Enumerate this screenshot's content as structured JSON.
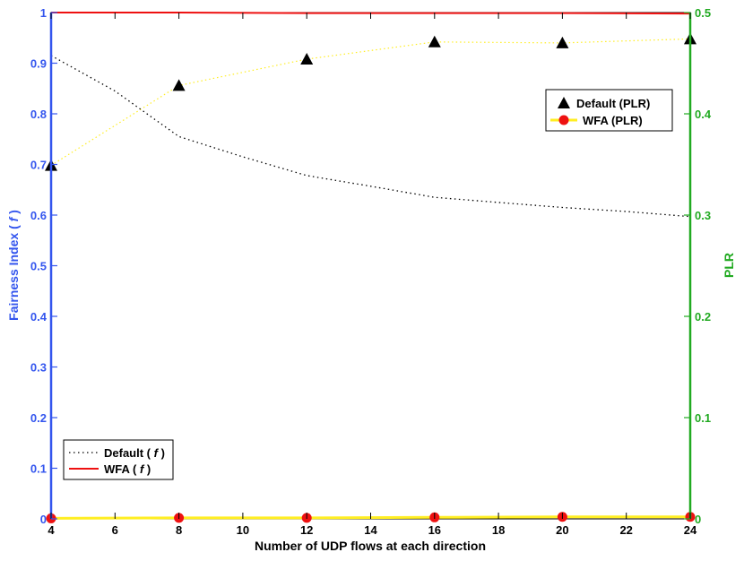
{
  "chart_data": {
    "type": "line",
    "xlabel": "Number of UDP flows at each direction",
    "ylabel_left": "Fairness Index ( f )",
    "ylabel_left_parts": [
      "Fairness Index ( ",
      "f",
      " )"
    ],
    "ylabel_right": "PLR",
    "x_ticks": [
      4,
      6,
      8,
      10,
      12,
      14,
      16,
      18,
      20,
      22,
      24
    ],
    "y_left_ticks": [
      0,
      0.1,
      0.2,
      0.3,
      0.4,
      0.5,
      0.6,
      0.7,
      0.8,
      0.9,
      1
    ],
    "y_right_ticks": [
      0,
      0.1,
      0.2,
      0.3,
      0.4,
      0.5
    ],
    "xlim": [
      4,
      24
    ],
    "ylim_left": [
      0,
      1
    ],
    "ylim_right": [
      0,
      0.5
    ],
    "colors": {
      "left_axis": "#3355ee",
      "right_axis": "#22aa22",
      "default_f": "#000000",
      "wfa_f": "#ee1111",
      "plr_line": "#ffee22",
      "default_plr_marker": "#000000",
      "wfa_plr_marker": "#ee1111"
    },
    "series": [
      {
        "name": "Default ( f )",
        "name_parts": [
          "Default ( ",
          "f",
          " )"
        ],
        "axis": "left",
        "style": "dotted",
        "x": [
          4,
          6,
          8,
          10,
          12,
          14,
          16,
          18,
          20,
          22,
          24
        ],
        "values": [
          0.915,
          0.845,
          0.755,
          0.715,
          0.678,
          0.657,
          0.635,
          0.625,
          0.615,
          0.607,
          0.597
        ]
      },
      {
        "name": "WFA ( f )",
        "name_parts": [
          "WFA ( ",
          "f",
          " )"
        ],
        "axis": "left",
        "style": "solid",
        "x": [
          4,
          8,
          12,
          16,
          20,
          24
        ],
        "values": [
          1.0,
          1.0,
          0.999,
          0.999,
          0.999,
          0.998
        ]
      },
      {
        "name": "Default (PLR)",
        "axis": "right",
        "style": "dotted-with-triangles",
        "x": [
          4,
          8,
          12,
          16,
          20,
          24
        ],
        "values": [
          0.349,
          0.428,
          0.454,
          0.471,
          0.47,
          0.474
        ]
      },
      {
        "name": "WFA (PLR)",
        "axis": "right",
        "style": "solid-with-circles",
        "x": [
          4,
          8,
          12,
          16,
          20,
          24
        ],
        "values": [
          0.0005,
          0.001,
          0.001,
          0.0015,
          0.002,
          0.002
        ]
      }
    ],
    "legend_left": {
      "placement": "bottom-left",
      "entries": [
        "Default ( f )",
        "WFA ( f )"
      ]
    },
    "legend_right": {
      "placement": "top-right",
      "entries": [
        "Default (PLR)",
        "WFA (PLR)"
      ]
    },
    "grid": false
  }
}
